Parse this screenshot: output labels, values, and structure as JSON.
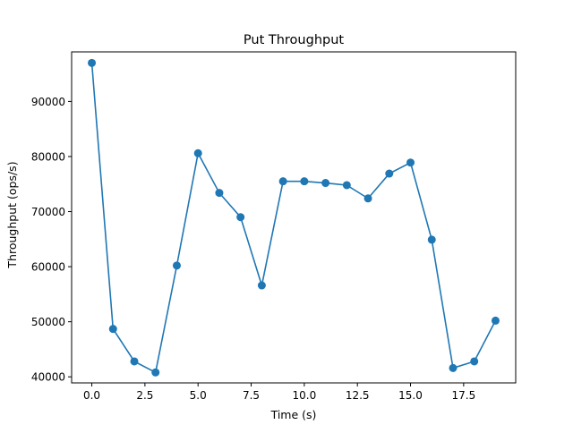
{
  "chart_data": {
    "type": "line",
    "title": "Put Throughput",
    "xlabel": "Time (s)",
    "ylabel": "Throughput (ops/s)",
    "xlim": [
      -0.95,
      19.95
    ],
    "ylim": [
      38900,
      99000
    ],
    "xticks": [
      0.0,
      2.5,
      5.0,
      7.5,
      10.0,
      12.5,
      15.0,
      17.5
    ],
    "xtick_labels": [
      "0.0",
      "2.5",
      "5.0",
      "7.5",
      "10.0",
      "12.5",
      "15.0",
      "17.5"
    ],
    "yticks": [
      40000,
      50000,
      60000,
      70000,
      80000,
      90000
    ],
    "ytick_labels": [
      "40000",
      "50000",
      "60000",
      "70000",
      "80000",
      "90000"
    ],
    "grid": false,
    "marker": "circle",
    "color": "#1f77b4",
    "series": [
      {
        "x": [
          0,
          1,
          2,
          3,
          4,
          5,
          6,
          7,
          8,
          9,
          10,
          11,
          12,
          13,
          14,
          15,
          16,
          17,
          18,
          19
        ],
        "values": [
          97000,
          48700,
          42800,
          40800,
          60200,
          80600,
          73400,
          69000,
          56600,
          75500,
          75500,
          75200,
          74800,
          72400,
          76900,
          78900,
          64900,
          41600,
          42800,
          50200
        ]
      }
    ]
  }
}
